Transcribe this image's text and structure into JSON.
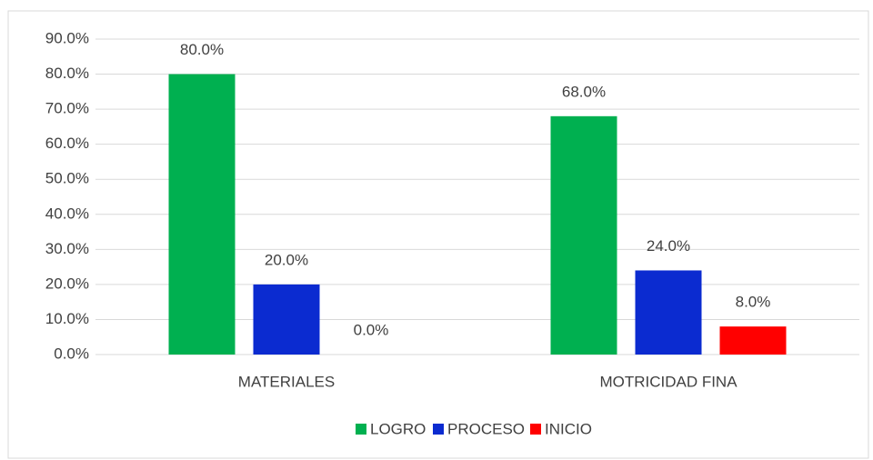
{
  "chart_data": {
    "type": "bar",
    "categories": [
      "MATERIALES",
      "MOTRICIDAD FINA"
    ],
    "series": [
      {
        "name": "LOGRO",
        "color": "#00b050",
        "values": [
          80,
          68
        ],
        "value_labels": [
          "80.0%",
          "68.0%"
        ]
      },
      {
        "name": "PROCESO",
        "color": "#0b2bd0",
        "values": [
          20,
          24
        ],
        "value_labels": [
          "20.0%",
          "24.0%"
        ]
      },
      {
        "name": "INICIO",
        "color": "#ff0000",
        "values": [
          0,
          8
        ],
        "value_labels": [
          "0.0%",
          "8.0%"
        ]
      }
    ],
    "ylim": [
      0,
      90
    ],
    "yticks": [
      {
        "value": 0,
        "label": "0.0%"
      },
      {
        "value": 10,
        "label": "10.0%"
      },
      {
        "value": 20,
        "label": "20.0%"
      },
      {
        "value": 30,
        "label": "30.0%"
      },
      {
        "value": 40,
        "label": "40.0%"
      },
      {
        "value": 50,
        "label": "50.0%"
      },
      {
        "value": 60,
        "label": "60.0%"
      },
      {
        "value": 70,
        "label": "70.0%"
      },
      {
        "value": 80,
        "label": "80.0%"
      },
      {
        "value": 90,
        "label": "90.0%"
      }
    ],
    "grid": true,
    "legend": "bottom"
  }
}
